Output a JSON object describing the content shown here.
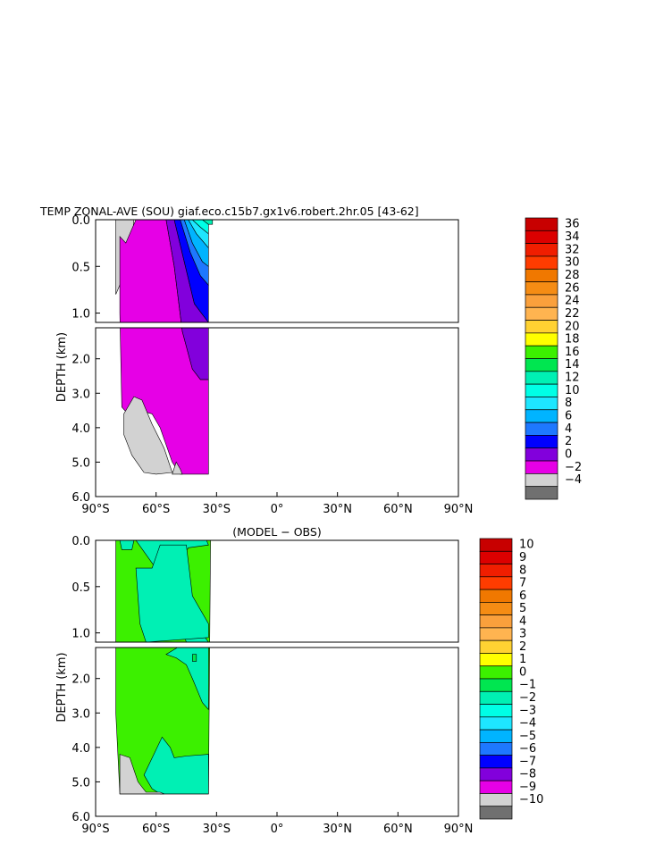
{
  "chart_data": [
    {
      "type": "heatmap",
      "title": "TEMP ZONAL-AVE (SOU) giaf.eco.c15b7.gx1v6.robert.2hr.05 [43-62]",
      "ylabel": "DEPTH (km)",
      "xlim": [
        -90,
        90
      ],
      "ylim": [
        6.0,
        0.0
      ],
      "x_ticks": [
        "90°S",
        "60°S",
        "30°S",
        "0°",
        "30°N",
        "60°N",
        "90°N"
      ],
      "y_ticks_upper": [
        "0.0",
        "0.5",
        "1.0"
      ],
      "y_ticks_lower": [
        "2.0",
        "3.0",
        "4.0",
        "5.0",
        "6.0"
      ],
      "upper_panel_depth_km": [
        0.0,
        1.1
      ],
      "lower_panel_depth_km": [
        1.1,
        6.0
      ],
      "data_lat_range": [
        -78,
        -34
      ],
      "legend": {
        "labels": [
          "36",
          "34",
          "32",
          "30",
          "28",
          "26",
          "24",
          "22",
          "20",
          "18",
          "16",
          "14",
          "12",
          "10",
          "8",
          "6",
          "4",
          "2",
          "0",
          "−2",
          "−4"
        ],
        "colors": [
          "#c80000",
          "#dc0000",
          "#f01e00",
          "#ff3c00",
          "#f07800",
          "#f58c14",
          "#faa03c",
          "#ffb450",
          "#ffd232",
          "#ffff00",
          "#3cf000",
          "#00e650",
          "#00f0b4",
          "#00ffe6",
          "#1ee6ff",
          "#00b4ff",
          "#1e78ff",
          "#0000ff",
          "#8200dc",
          "#e600e6",
          "#d2d2d2",
          "#707070"
        ]
      }
    },
    {
      "type": "heatmap",
      "title": "(MODEL − OBS)",
      "ylabel": "DEPTH (km)",
      "xlim": [
        -90,
        90
      ],
      "ylim": [
        6.0,
        0.0
      ],
      "x_ticks": [
        "90°S",
        "60°S",
        "30°S",
        "0°",
        "30°N",
        "60°N",
        "90°N"
      ],
      "y_ticks_upper": [
        "0.0",
        "0.5",
        "1.0"
      ],
      "y_ticks_lower": [
        "2.0",
        "3.0",
        "4.0",
        "5.0",
        "6.0"
      ],
      "upper_panel_depth_km": [
        0.0,
        1.1
      ],
      "lower_panel_depth_km": [
        1.1,
        6.0
      ],
      "data_lat_range": [
        -78,
        -34
      ],
      "legend": {
        "labels": [
          "10",
          "9",
          "8",
          "7",
          "6",
          "5",
          "4",
          "3",
          "2",
          "1",
          "0",
          "−1",
          "−2",
          "−3",
          "−4",
          "−5",
          "−6",
          "−7",
          "−8",
          "−9",
          "−10"
        ],
        "colors": [
          "#c80000",
          "#dc0000",
          "#f01e00",
          "#ff3c00",
          "#f07800",
          "#f58c14",
          "#faa03c",
          "#ffb450",
          "#ffd232",
          "#ffff00",
          "#3cf000",
          "#00e650",
          "#00f0b4",
          "#00ffe6",
          "#1ee6ff",
          "#00b4ff",
          "#1e78ff",
          "#0000ff",
          "#8200dc",
          "#e600e6",
          "#d2d2d2",
          "#707070"
        ]
      }
    }
  ]
}
